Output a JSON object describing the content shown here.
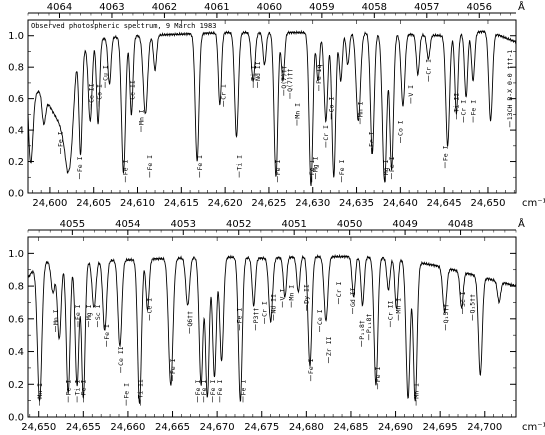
{
  "chart_data": [
    {
      "type": "line",
      "title": "Observed photospheric spectrum, 9 March 1983",
      "xlabel_unit": "cm⁻¹",
      "top_axis_unit": "Å",
      "xlim": [
        24597.5,
        24653.2
      ],
      "ylim": [
        0,
        1.1
      ],
      "x_ticks": [
        24600,
        24605,
        24610,
        24615,
        24620,
        24625,
        24630,
        24635,
        24640,
        24645,
        24650
      ],
      "x_tick_labels": [
        "24,600",
        "24,605",
        "24,610",
        "24,615",
        "24,620",
        "24,625",
        "24,630",
        "24,635",
        "24,640",
        "24,645",
        "24,650"
      ],
      "y_ticks": [
        0,
        0.2,
        0.4,
        0.6,
        0.8,
        1.0
      ],
      "y_tick_labels": [
        "0.0",
        "0.2",
        "0.4",
        "0.6",
        "0.8",
        "1.0"
      ],
      "top_ticks": [
        4064,
        4063,
        4062,
        4061,
        4060,
        4059,
        4058,
        4057,
        4056
      ],
      "top_tick_labels": [
        "4064",
        "4063",
        "4062",
        "4061",
        "4060",
        "4059",
        "4058",
        "4057",
        "4056"
      ],
      "continuum": [
        [
          24597.5,
          0.78
        ],
        [
          24598,
          0.62
        ],
        [
          24599,
          0.66
        ],
        [
          24600,
          0.55
        ],
        [
          24601,
          0.45
        ],
        [
          24602,
          0.28
        ],
        [
          24603,
          0.82
        ],
        [
          24604,
          0.92
        ],
        [
          24605,
          0.97
        ],
        [
          24607,
          0.99
        ],
        [
          24610,
          1.0
        ],
        [
          24615,
          1.01
        ],
        [
          24620,
          1.02
        ],
        [
          24625,
          1.02
        ],
        [
          24630,
          1.02
        ],
        [
          24635,
          1.02
        ],
        [
          24640,
          1.01
        ],
        [
          24645,
          1.0
        ],
        [
          24650,
          1.03
        ],
        [
          24653.2,
          0.96
        ]
      ],
      "lines": [
        {
          "x": 24597.8,
          "depth": 0.72,
          "w": 0.35
        },
        {
          "x": 24599.3,
          "depth": 0.3,
          "w": 0.3
        },
        {
          "x": 24602.2,
          "depth": 0.62,
          "w": 0.5
        },
        {
          "x": 24603.5,
          "depth": 0.72,
          "w": 0.25
        },
        {
          "x": 24604.6,
          "depth": 0.52,
          "w": 0.3
        },
        {
          "x": 24605.5,
          "depth": 0.55,
          "w": 0.25
        },
        {
          "x": 24606.8,
          "depth": 0.3,
          "w": 0.25
        },
        {
          "x": 24608.4,
          "depth": 0.87,
          "w": 0.32
        },
        {
          "x": 24609.3,
          "depth": 0.5,
          "w": 0.25
        },
        {
          "x": 24610.9,
          "depth": 0.5,
          "w": 0.35
        },
        {
          "x": 24612.0,
          "depth": 0.22,
          "w": 0.25
        },
        {
          "x": 24616.8,
          "depth": 0.8,
          "w": 0.3
        },
        {
          "x": 24619.4,
          "depth": 0.45,
          "w": 0.25
        },
        {
          "x": 24621.3,
          "depth": 0.65,
          "w": 0.3
        },
        {
          "x": 24623.2,
          "depth": 0.3,
          "w": 0.3
        },
        {
          "x": 24624.5,
          "depth": 0.2,
          "w": 0.25
        },
        {
          "x": 24625.8,
          "depth": 0.9,
          "w": 0.3
        },
        {
          "x": 24626.6,
          "depth": 0.3,
          "w": 0.25
        },
        {
          "x": 24629.8,
          "depth": 0.95,
          "w": 0.3
        },
        {
          "x": 24630.6,
          "depth": 0.3,
          "w": 0.25
        },
        {
          "x": 24631.5,
          "depth": 0.55,
          "w": 0.3
        },
        {
          "x": 24632.4,
          "depth": 0.9,
          "w": 0.3
        },
        {
          "x": 24633.2,
          "depth": 0.3,
          "w": 0.25
        },
        {
          "x": 24634.0,
          "depth": 0.2,
          "w": 0.25
        },
        {
          "x": 24635.2,
          "depth": 0.55,
          "w": 0.35
        },
        {
          "x": 24636.8,
          "depth": 0.75,
          "w": 0.3
        },
        {
          "x": 24638.2,
          "depth": 0.93,
          "w": 0.35
        },
        {
          "x": 24639.0,
          "depth": 0.85,
          "w": 0.3
        },
        {
          "x": 24640.3,
          "depth": 0.45,
          "w": 0.3
        },
        {
          "x": 24642.0,
          "depth": 0.25,
          "w": 0.25
        },
        {
          "x": 24643.2,
          "depth": 0.15,
          "w": 0.25
        },
        {
          "x": 24645.4,
          "depth": 0.7,
          "w": 0.3
        },
        {
          "x": 24646.4,
          "depth": 0.5,
          "w": 0.25
        },
        {
          "x": 24647.5,
          "depth": 0.4,
          "w": 0.25
        },
        {
          "x": 24648.3,
          "depth": 0.3,
          "w": 0.25
        },
        {
          "x": 24650.3,
          "depth": 0.55,
          "w": 0.3
        }
      ],
      "annotations": [
        {
          "x": 24601.2,
          "y": 0.28,
          "text": "Fe I"
        },
        {
          "x": 24603.4,
          "y": 0.12,
          "text": "Fe I"
        },
        {
          "x": 24604.7,
          "y": 0.56,
          "text": "Ce II"
        },
        {
          "x": 24605.6,
          "y": 0.58,
          "text": "Co I"
        },
        {
          "x": 24606.3,
          "y": 0.7,
          "text": "Cu I"
        },
        {
          "x": 24608.6,
          "y": 0.1,
          "text": "Fe I"
        },
        {
          "x": 24609.4,
          "y": 0.58,
          "text": "Ce II"
        },
        {
          "x": 24610.4,
          "y": 0.42,
          "text": "Mn I"
        },
        {
          "x": 24611.4,
          "y": 0.13,
          "text": "Fe I"
        },
        {
          "x": 24617.1,
          "y": 0.13,
          "text": "Fe I"
        },
        {
          "x": 24619.8,
          "y": 0.58,
          "text": "Cr I"
        },
        {
          "x": 24621.6,
          "y": 0.13,
          "text": "Ti I"
        },
        {
          "x": 24623.2,
          "y": 0.7,
          "text": "Ti I"
        },
        {
          "x": 24623.7,
          "y": 0.7,
          "text": "Nd II"
        },
        {
          "x": 24626.0,
          "y": 0.1,
          "text": "Fe I"
        },
        {
          "x": 24626.7,
          "y": 0.65,
          "text": "Q(7)††"
        },
        {
          "x": 24627.4,
          "y": 0.63,
          "text": "Q(7)††"
        },
        {
          "x": 24628.2,
          "y": 0.46,
          "text": "Mn I"
        },
        {
          "x": 24629.9,
          "y": 0.1,
          "text": "Fe I"
        },
        {
          "x": 24630.3,
          "y": 0.12,
          "text": "Mg I"
        },
        {
          "x": 24630.7,
          "y": 0.68,
          "text": "Fe Iq"
        },
        {
          "x": 24631.5,
          "y": 0.32,
          "text": "Cr I"
        },
        {
          "x": 24632.1,
          "y": 0.5,
          "text": "Co I"
        },
        {
          "x": 24633.3,
          "y": 0.1,
          "text": "Fe I"
        },
        {
          "x": 24635.4,
          "y": 0.47,
          "text": "Mn I"
        },
        {
          "x": 24636.7,
          "y": 0.28,
          "text": "Fe I"
        },
        {
          "x": 24638.3,
          "y": 0.1,
          "text": "Mg I"
        },
        {
          "x": 24639.0,
          "y": 0.12,
          "text": "Fe I"
        },
        {
          "x": 24640.0,
          "y": 0.35,
          "text": "Co I"
        },
        {
          "x": 24641.2,
          "y": 0.6,
          "text": "V I"
        },
        {
          "x": 24643.2,
          "y": 0.74,
          "text": "Cr I"
        },
        {
          "x": 24645.1,
          "y": 0.19,
          "text": "Fe I"
        },
        {
          "x": 24646.4,
          "y": 0.5,
          "text": "Ti II"
        },
        {
          "x": 24647.2,
          "y": 0.48,
          "text": "Cr I"
        },
        {
          "x": 24648.3,
          "y": 0.48,
          "text": "Fe I"
        },
        {
          "x": 24652.5,
          "y": 0.45,
          "text": "13CH B-X 0-0 †††-1"
        }
      ]
    },
    {
      "type": "line",
      "xlabel_unit": "cm⁻¹",
      "top_axis_unit": "Å",
      "xlim": [
        24648.8,
        24703.5
      ],
      "ylim": [
        0,
        1.1
      ],
      "x_ticks": [
        24650,
        24655,
        24660,
        24665,
        24670,
        24675,
        24680,
        24685,
        24690,
        24695,
        24700
      ],
      "x_tick_labels": [
        "24,650",
        "24,655",
        "24,660",
        "24,665",
        "24,670",
        "24,675",
        "24,680",
        "24,685",
        "24,690",
        "24,695",
        "24,700"
      ],
      "y_ticks": [
        0,
        0.2,
        0.4,
        0.6,
        0.8,
        1.0
      ],
      "y_tick_labels": [
        "0.0",
        "0.2",
        "0.4",
        "0.6",
        "0.8",
        "1.0"
      ],
      "top_ticks": [
        4055,
        4054,
        4053,
        4052,
        4051,
        4050,
        4049,
        4048
      ],
      "top_tick_labels": [
        "4055",
        "4054",
        "4053",
        "4052",
        "4051",
        "4050",
        "4049",
        "4048"
      ],
      "continuum": [
        [
          24648.8,
          0.85
        ],
        [
          24650,
          0.95
        ],
        [
          24655,
          0.95
        ],
        [
          24660,
          0.96
        ],
        [
          24665,
          0.97
        ],
        [
          24670,
          0.98
        ],
        [
          24675,
          0.97
        ],
        [
          24680,
          0.98
        ],
        [
          24685,
          0.98
        ],
        [
          24690,
          0.97
        ],
        [
          24695,
          0.92
        ],
        [
          24700,
          0.85
        ],
        [
          24703.5,
          0.8
        ]
      ],
      "lines": [
        {
          "x": 24650.1,
          "depth": 0.9,
          "w": 0.35
        },
        {
          "x": 24651.6,
          "depth": 0.2,
          "w": 0.3
        },
        {
          "x": 24652.3,
          "depth": 0.5,
          "w": 0.3
        },
        {
          "x": 24653.3,
          "depth": 0.85,
          "w": 0.3
        },
        {
          "x": 24654.3,
          "depth": 0.8,
          "w": 0.3
        },
        {
          "x": 24655.0,
          "depth": 0.88,
          "w": 0.28
        },
        {
          "x": 24656.2,
          "depth": 0.3,
          "w": 0.3
        },
        {
          "x": 24657.4,
          "depth": 0.45,
          "w": 0.3
        },
        {
          "x": 24659.1,
          "depth": 0.55,
          "w": 0.3
        },
        {
          "x": 24661.3,
          "depth": 0.92,
          "w": 0.3
        },
        {
          "x": 24662.2,
          "depth": 0.32,
          "w": 0.25
        },
        {
          "x": 24664.8,
          "depth": 0.8,
          "w": 0.35
        },
        {
          "x": 24666.7,
          "depth": 0.3,
          "w": 0.3
        },
        {
          "x": 24668.2,
          "depth": 0.8,
          "w": 0.3
        },
        {
          "x": 24668.9,
          "depth": 0.88,
          "w": 0.3
        },
        {
          "x": 24669.7,
          "depth": 0.75,
          "w": 0.3
        },
        {
          "x": 24670.5,
          "depth": 0.65,
          "w": 0.3
        },
        {
          "x": 24672.6,
          "depth": 0.9,
          "w": 0.3
        },
        {
          "x": 24674.1,
          "depth": 0.3,
          "w": 0.25
        },
        {
          "x": 24676.0,
          "depth": 0.4,
          "w": 0.3
        },
        {
          "x": 24677.6,
          "depth": 0.25,
          "w": 0.25
        },
        {
          "x": 24679.1,
          "depth": 0.22,
          "w": 0.25
        },
        {
          "x": 24680.4,
          "depth": 0.68,
          "w": 0.3
        },
        {
          "x": 24682.2,
          "depth": 0.4,
          "w": 0.3
        },
        {
          "x": 24685.3,
          "depth": 0.25,
          "w": 0.25
        },
        {
          "x": 24686.3,
          "depth": 0.3,
          "w": 0.25
        },
        {
          "x": 24687.8,
          "depth": 0.8,
          "w": 0.3
        },
        {
          "x": 24689.2,
          "depth": 0.2,
          "w": 0.25
        },
        {
          "x": 24690.1,
          "depth": 0.32,
          "w": 0.25
        },
        {
          "x": 24691.4,
          "depth": 0.88,
          "w": 0.32
        },
        {
          "x": 24692.2,
          "depth": 0.9,
          "w": 0.3
        },
        {
          "x": 24695.5,
          "depth": 0.3,
          "w": 0.3
        },
        {
          "x": 24697.4,
          "depth": 0.25,
          "w": 0.25
        },
        {
          "x": 24699.5,
          "depth": 0.7,
          "w": 0.3
        },
        {
          "x": 24701.6,
          "depth": 0.15,
          "w": 0.25
        }
      ],
      "annotations": [
        {
          "x": 24650.1,
          "y": 0.1,
          "text": "Mn I"
        },
        {
          "x": 24651.9,
          "y": 0.55,
          "text": "Mn I"
        },
        {
          "x": 24653.3,
          "y": 0.12,
          "text": "Fe I"
        },
        {
          "x": 24654.3,
          "y": 0.12,
          "text": "Ti I"
        },
        {
          "x": 24655.0,
          "y": 0.12,
          "text": "Fe I"
        },
        {
          "x": 24654.4,
          "y": 0.58,
          "text": "Fe I"
        },
        {
          "x": 24655.6,
          "y": 0.58,
          "text": "Mg I"
        },
        {
          "x": 24656.6,
          "y": 0.58,
          "text": "Sc I"
        },
        {
          "x": 24657.6,
          "y": 0.46,
          "text": "Fe I"
        },
        {
          "x": 24659.2,
          "y": 0.3,
          "text": "Ce II"
        },
        {
          "x": 24659.8,
          "y": 0.1,
          "text": "Fe I"
        },
        {
          "x": 24661.4,
          "y": 0.1,
          "text": "Ti II"
        },
        {
          "x": 24662.4,
          "y": 0.62,
          "text": "Ce I"
        },
        {
          "x": 24665.0,
          "y": 0.25,
          "text": "Fe I"
        },
        {
          "x": 24666.9,
          "y": 0.54,
          "text": "Q6††"
        },
        {
          "x": 24667.8,
          "y": 0.12,
          "text": "Fe I"
        },
        {
          "x": 24668.5,
          "y": 0.12,
          "text": "Fe I"
        },
        {
          "x": 24669.5,
          "y": 0.12,
          "text": "Fe I"
        },
        {
          "x": 24670.3,
          "y": 0.12,
          "text": "Fe I"
        },
        {
          "x": 24672.9,
          "y": 0.12,
          "text": "Fe I"
        },
        {
          "x": 24672.5,
          "y": 0.56,
          "text": "Fe I"
        },
        {
          "x": 24674.3,
          "y": 0.56,
          "text": "P3††"
        },
        {
          "x": 24675.3,
          "y": 0.6,
          "text": "Cr I"
        },
        {
          "x": 24676.3,
          "y": 0.62,
          "text": "Nd II"
        },
        {
          "x": 24677.3,
          "y": 0.7,
          "text": "V I"
        },
        {
          "x": 24678.3,
          "y": 0.7,
          "text": "Mn I"
        },
        {
          "x": 24680.5,
          "y": 0.25,
          "text": "Fe I"
        },
        {
          "x": 24680.0,
          "y": 0.68,
          "text": "Dy II"
        },
        {
          "x": 24681.5,
          "y": 0.55,
          "text": "Ce I"
        },
        {
          "x": 24682.5,
          "y": 0.36,
          "text": "Zr II"
        },
        {
          "x": 24683.6,
          "y": 0.72,
          "text": "Cr I"
        },
        {
          "x": 24685.2,
          "y": 0.66,
          "text": "Gd II"
        },
        {
          "x": 24686.2,
          "y": 0.46,
          "text": "P₁₁8†"
        },
        {
          "x": 24687.0,
          "y": 0.5,
          "text": "P₁₁8†"
        },
        {
          "x": 24688.0,
          "y": 0.2,
          "text": "Fe I"
        },
        {
          "x": 24689.4,
          "y": 0.58,
          "text": "Cr II"
        },
        {
          "x": 24690.3,
          "y": 0.62,
          "text": "Mn I"
        },
        {
          "x": 24692.3,
          "y": 0.1,
          "text": "Mn I"
        },
        {
          "x": 24695.6,
          "y": 0.56,
          "text": "Q₁5††"
        },
        {
          "x": 24697.5,
          "y": 0.66,
          "text": "Sc I"
        },
        {
          "x": 24698.6,
          "y": 0.62,
          "text": "Q₁5††"
        }
      ]
    }
  ]
}
